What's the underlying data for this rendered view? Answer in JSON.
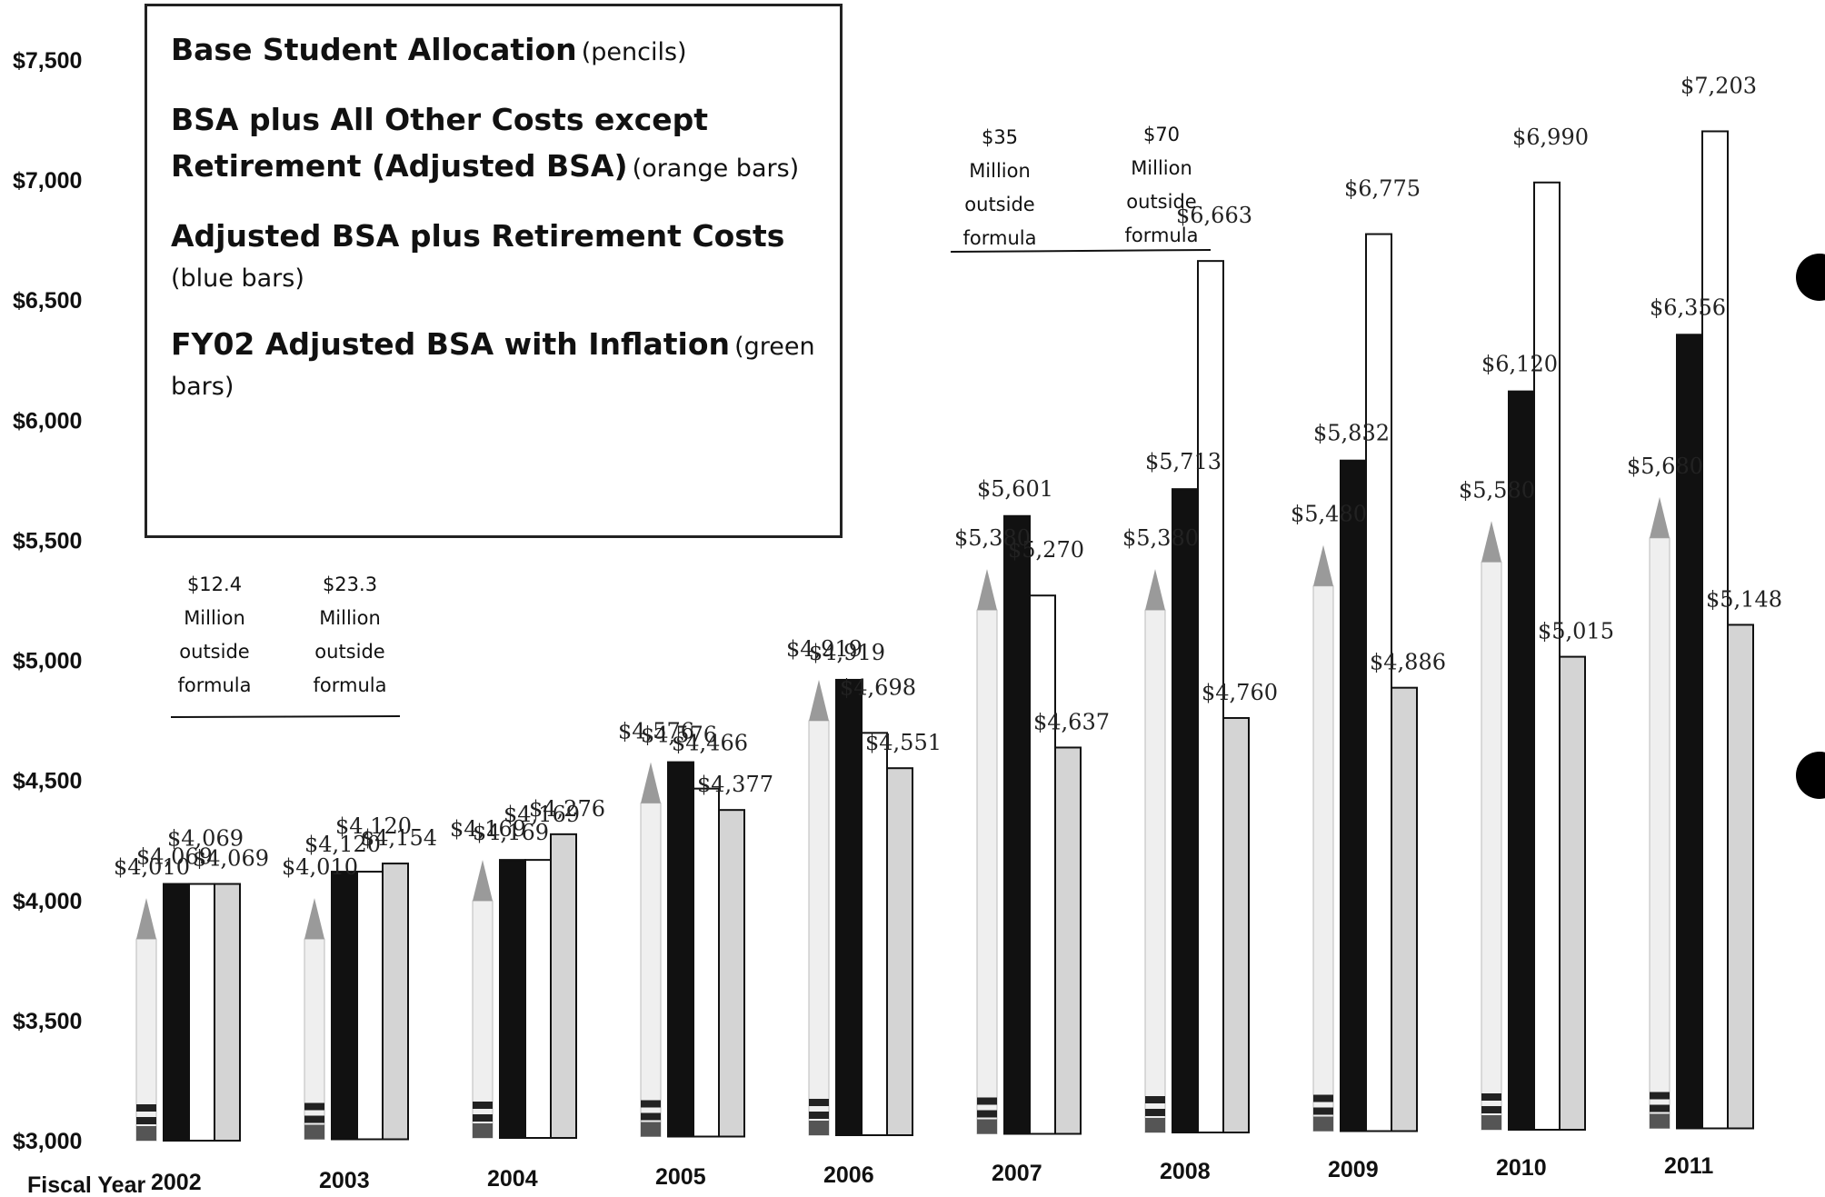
{
  "chart_data": {
    "type": "bar",
    "xlabel": "Fiscal Year",
    "ylim": [
      3000,
      7500
    ],
    "yticks": [
      "$7,500",
      "$7,000",
      "$6,500",
      "$6,000",
      "$5,500",
      "$5,000",
      "$4,500",
      "$4,000",
      "$3,500",
      "$3,000"
    ],
    "ytick_values": [
      7500,
      7000,
      6500,
      6000,
      5500,
      5000,
      4500,
      4000,
      3500,
      3000
    ],
    "categories": [
      "2002",
      "2003",
      "2004",
      "2005",
      "2006",
      "2007",
      "2008",
      "2009",
      "2010",
      "2011"
    ],
    "series": [
      {
        "name": "Base Student Allocation",
        "key": "bsa",
        "color": "#e8e8e8",
        "values": [
          4010,
          4010,
          4169,
          4576,
          4919,
          5380,
          5380,
          5480,
          5580,
          5680
        ],
        "labels": [
          "$4,010",
          "$4,010",
          "$4,169",
          "$4,576",
          "$4,919",
          "$5,380",
          "$5,380",
          "$5,480",
          "$5,580",
          "$5,680"
        ]
      },
      {
        "name": "BSA plus All Other Costs except Retirement (Adjusted BSA)",
        "key": "adjusted",
        "color": "#111111",
        "values": [
          4069,
          4120,
          4169,
          4576,
          4919,
          5601,
          5713,
          5832,
          6120,
          6356
        ],
        "labels": [
          "$4,069",
          "$4,120",
          "$4,169",
          "$4,576",
          "$4,919",
          "$5,601",
          "$5,713",
          "$5,832",
          "$6,120",
          "$6,356"
        ]
      },
      {
        "name": "Adjusted BSA plus Retirement Costs",
        "key": "retirement",
        "color": "#ffffff",
        "values": [
          4069,
          4120,
          4169,
          4466,
          4698,
          5270,
          6663,
          6775,
          6990,
          7203
        ],
        "labels": [
          "$4,069",
          "$4,120",
          "$4,169",
          "$4,466",
          "$4,698",
          "$5,270",
          "$6,663",
          "$6,775",
          "$6,990",
          "$7,203"
        ]
      },
      {
        "name": "FY02 Adjusted BSA with Inflation",
        "key": "inflation",
        "color": "#d4d4d4",
        "values": [
          4069,
          4154,
          4276,
          4377,
          4551,
          4637,
          4760,
          4886,
          5015,
          5148
        ],
        "labels": [
          "$4,069",
          "$4,154",
          "$4,276",
          "$4,377",
          "$4,551",
          "$4,637",
          "$4,760",
          "$4,886",
          "$5,015",
          "$5,148"
        ]
      }
    ],
    "annotations": [
      {
        "year": "2002",
        "lines": [
          "$12.4",
          "Million",
          "outside",
          "formula"
        ]
      },
      {
        "year": "2003",
        "lines": [
          "$23.3",
          "Million",
          "outside",
          "formula"
        ]
      },
      {
        "year": "2007",
        "lines": [
          "$35",
          "Million",
          "outside",
          "formula"
        ]
      },
      {
        "year": "2008",
        "lines": [
          "$70",
          "Million",
          "outside",
          "formula"
        ]
      }
    ],
    "legend": [
      {
        "main": "Base Student Allocation",
        "sub": "(pencils)"
      },
      {
        "main": "BSA plus All Other Costs except Retirement (Adjusted BSA)",
        "sub": "(orange bars)"
      },
      {
        "main": "Adjusted BSA plus Retirement Costs",
        "sub": "(blue bars)"
      },
      {
        "main": "FY02 Adjusted BSA with Inflation",
        "sub": "(green bars)"
      }
    ],
    "legend_placement": "top-left",
    "grid": false
  }
}
